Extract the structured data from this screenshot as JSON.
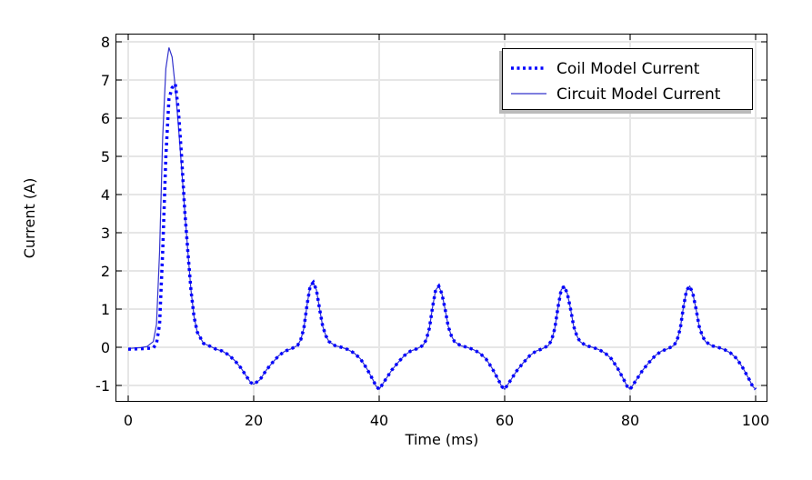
{
  "chart_data": {
    "type": "line",
    "title": "",
    "xlabel": "Time (ms)",
    "ylabel": "Current (A)",
    "xlim": [
      -2,
      102
    ],
    "ylim": [
      -1.4,
      8.2
    ],
    "xticks": [
      0,
      20,
      40,
      60,
      80,
      100
    ],
    "yticks": [
      -1,
      0,
      1,
      2,
      3,
      4,
      5,
      6,
      7,
      8
    ],
    "grid": true,
    "legend_position": "top-right",
    "series": [
      {
        "name": "Coil Model Current",
        "style": "dotted",
        "color": "#0000ff",
        "x": [
          0,
          2,
          4,
          4.5,
          5,
          5.5,
          6,
          6.5,
          7,
          7.5,
          8,
          8.5,
          9,
          9.5,
          10,
          10.5,
          11,
          12,
          13,
          14,
          15,
          16,
          17,
          18,
          19,
          19.5,
          20,
          21,
          22,
          23,
          24,
          25,
          26,
          27,
          27.5,
          28,
          28.5,
          29,
          29.5,
          30,
          30.5,
          31,
          31.5,
          32,
          33,
          34,
          35,
          36,
          37,
          38,
          39,
          39.5,
          40,
          41,
          42,
          43,
          44,
          45,
          46,
          47,
          47.5,
          48,
          48.5,
          49,
          49.5,
          50,
          50.5,
          51,
          51.5,
          52,
          53,
          54,
          55,
          56,
          57,
          58,
          59,
          59.5,
          60,
          61,
          62,
          63,
          64,
          65,
          66,
          67,
          67.5,
          68,
          68.5,
          69,
          69.5,
          70,
          70.5,
          71,
          71.5,
          72,
          73,
          74,
          75,
          76,
          77,
          78,
          79,
          79.5,
          80,
          81,
          82,
          83,
          84,
          85,
          86,
          87,
          87.5,
          88,
          88.5,
          89,
          89.5,
          90,
          90.5,
          91,
          91.5,
          92,
          93,
          94,
          95,
          96,
          97,
          98,
          99,
          99.5,
          100
        ],
        "y": [
          -0.05,
          -0.04,
          -0.02,
          0.1,
          0.6,
          2.5,
          5.0,
          6.5,
          6.8,
          6.9,
          6.2,
          5.0,
          3.6,
          2.5,
          1.5,
          0.8,
          0.4,
          0.1,
          0.03,
          -0.05,
          -0.1,
          -0.2,
          -0.35,
          -0.55,
          -0.8,
          -0.92,
          -0.97,
          -0.85,
          -0.6,
          -0.4,
          -0.22,
          -0.1,
          -0.04,
          0.05,
          0.2,
          0.5,
          1.1,
          1.6,
          1.7,
          1.5,
          1.0,
          0.55,
          0.3,
          0.15,
          0.04,
          0,
          -0.06,
          -0.15,
          -0.3,
          -0.55,
          -0.85,
          -1.02,
          -1.1,
          -0.85,
          -0.6,
          -0.4,
          -0.22,
          -0.1,
          -0.04,
          0.05,
          0.2,
          0.5,
          1.05,
          1.5,
          1.6,
          1.4,
          1.0,
          0.55,
          0.3,
          0.15,
          0.04,
          0,
          -0.06,
          -0.15,
          -0.3,
          -0.55,
          -0.85,
          -1.02,
          -1.1,
          -0.85,
          -0.6,
          -0.4,
          -0.22,
          -0.1,
          -0.04,
          0.05,
          0.2,
          0.5,
          1.05,
          1.5,
          1.6,
          1.4,
          1.0,
          0.55,
          0.3,
          0.15,
          0.04,
          0,
          -0.06,
          -0.15,
          -0.3,
          -0.55,
          -0.85,
          -1.02,
          -1.1,
          -0.85,
          -0.6,
          -0.4,
          -0.22,
          -0.1,
          -0.04,
          0.05,
          0.2,
          0.5,
          1.05,
          1.5,
          1.6,
          1.4,
          1.0,
          0.55,
          0.3,
          0.15,
          0.04,
          0,
          -0.06,
          -0.15,
          -0.3,
          -0.55,
          -0.85,
          -1.02,
          -1.1
        ]
      },
      {
        "name": "Circuit Model Current",
        "style": "solid",
        "color": "#3333cc",
        "x": [
          0,
          2,
          3,
          4,
          4.5,
          5,
          5.5,
          6,
          6.5,
          7,
          7.5,
          8,
          8.5,
          9,
          9.5,
          10,
          10.5,
          11,
          12,
          13,
          14,
          15,
          16,
          17,
          18,
          19,
          19.5,
          20,
          21,
          22,
          23,
          24,
          25,
          26,
          27,
          27.5,
          28,
          28.5,
          29,
          29.5,
          30,
          30.5,
          31,
          31.5,
          32,
          33,
          34,
          35,
          36,
          37,
          38,
          39,
          39.5,
          40,
          41,
          42,
          43,
          44,
          45,
          46,
          47,
          47.5,
          48,
          48.5,
          49,
          49.5,
          50,
          50.5,
          51,
          51.5,
          52,
          53,
          54,
          55,
          56,
          57,
          58,
          59,
          59.5,
          60,
          61,
          62,
          63,
          64,
          65,
          66,
          67,
          67.5,
          68,
          68.5,
          69,
          69.5,
          70,
          70.5,
          71,
          71.5,
          72,
          73,
          74,
          75,
          76,
          77,
          78,
          79,
          79.5,
          80,
          81,
          82,
          83,
          84,
          85,
          86,
          87,
          87.5,
          88,
          88.5,
          89,
          89.5,
          90,
          90.5,
          91,
          91.5,
          92,
          93,
          94,
          95,
          96,
          97,
          98,
          99,
          99.5,
          100
        ],
        "y": [
          -0.03,
          -0.01,
          0.02,
          0.15,
          0.6,
          2.5,
          5.5,
          7.3,
          7.85,
          7.6,
          6.8,
          5.8,
          4.7,
          3.6,
          2.5,
          1.5,
          0.8,
          0.4,
          0.1,
          0.03,
          -0.05,
          -0.1,
          -0.2,
          -0.35,
          -0.55,
          -0.8,
          -0.92,
          -0.97,
          -0.85,
          -0.6,
          -0.4,
          -0.22,
          -0.1,
          -0.04,
          0.05,
          0.2,
          0.5,
          1.1,
          1.6,
          1.7,
          1.5,
          1.0,
          0.55,
          0.3,
          0.15,
          0.04,
          0,
          -0.06,
          -0.15,
          -0.3,
          -0.55,
          -0.85,
          -1.02,
          -1.1,
          -0.85,
          -0.6,
          -0.4,
          -0.22,
          -0.1,
          -0.04,
          0.05,
          0.2,
          0.5,
          1.05,
          1.5,
          1.6,
          1.4,
          1.0,
          0.55,
          0.3,
          0.15,
          0.04,
          0,
          -0.06,
          -0.15,
          -0.3,
          -0.55,
          -0.85,
          -1.02,
          -1.1,
          -0.85,
          -0.6,
          -0.4,
          -0.22,
          -0.1,
          -0.04,
          0.05,
          0.2,
          0.5,
          1.05,
          1.5,
          1.6,
          1.4,
          1.0,
          0.55,
          0.3,
          0.15,
          0.04,
          0,
          -0.06,
          -0.15,
          -0.3,
          -0.55,
          -0.85,
          -1.02,
          -1.1,
          -0.85,
          -0.6,
          -0.4,
          -0.22,
          -0.1,
          -0.04,
          0.05,
          0.2,
          0.5,
          1.05,
          1.5,
          1.6,
          1.4,
          1.0,
          0.55,
          0.3,
          0.15,
          0.04,
          0,
          -0.06,
          -0.15,
          -0.3,
          -0.55,
          -0.85,
          -1.02,
          -1.1
        ]
      }
    ]
  }
}
